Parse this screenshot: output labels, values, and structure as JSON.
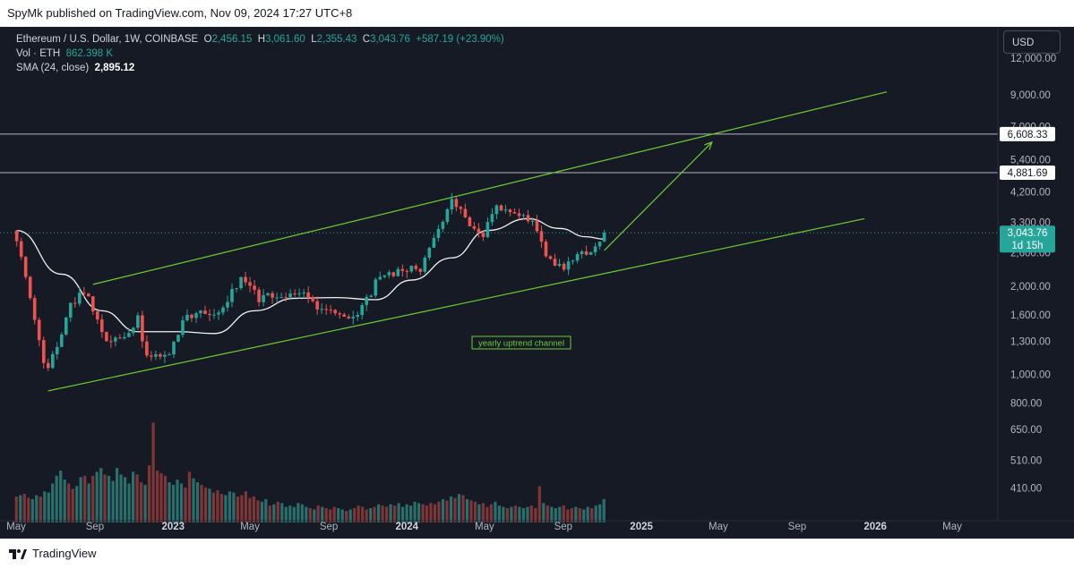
{
  "header": {
    "title": "SpyMk published on TradingView.com, Nov 09, 2024 17:27 UTC+8"
  },
  "legend": {
    "symbol": "Ethereum / U.S. Dollar, 1W, COINBASE",
    "o_label": "O",
    "o": "2,456.15",
    "h_label": "H",
    "h": "3,061.60",
    "l_label": "L",
    "l": "2,355.43",
    "c_label": "C",
    "c": "3,043.76",
    "change": "+587.19 (+23.90%)",
    "vol_label": "Vol · ETH",
    "vol": "862.398 K",
    "sma_label": "SMA (24, close)",
    "sma": "2,895.12"
  },
  "currency": "USD",
  "footer": {
    "brand": "TradingView"
  },
  "colors": {
    "up": "#26a69a",
    "down": "#ef5350",
    "channel": "#6ccf30",
    "sma": "#f2f2f2",
    "background": "#161a25"
  },
  "chart_data": {
    "type": "candlestick",
    "title": "Ethereum / U.S. Dollar, 1W, COINBASE",
    "scale": "log",
    "ylim": [
      330,
      13000
    ],
    "y_ticks": [
      {
        "value": 12000,
        "label": "12,000.00"
      },
      {
        "value": 9000,
        "label": "9,000.00"
      },
      {
        "value": 7000,
        "label": "7,000.00"
      },
      {
        "value": 5400,
        "label": "5,400.00"
      },
      {
        "value": 4200,
        "label": "4,200.00"
      },
      {
        "value": 3300,
        "label": "3,300.00"
      },
      {
        "value": 2600,
        "label": "2,600.00"
      },
      {
        "value": 2000,
        "label": "2,000.00"
      },
      {
        "value": 1600,
        "label": "1,600.00"
      },
      {
        "value": 1300,
        "label": "1,300.00"
      },
      {
        "value": 1000,
        "label": "1,000.00"
      },
      {
        "value": 800,
        "label": "800.00"
      },
      {
        "value": 650,
        "label": "650.00"
      },
      {
        "value": 510,
        "label": "510.00"
      },
      {
        "value": 410,
        "label": "410.00"
      }
    ],
    "x_ticks": [
      {
        "date": "2022-05",
        "label": "May",
        "bold": false
      },
      {
        "date": "2022-09",
        "label": "Sep",
        "bold": false
      },
      {
        "date": "2023-01",
        "label": "2023",
        "bold": true
      },
      {
        "date": "2023-05",
        "label": "May",
        "bold": false
      },
      {
        "date": "2023-09",
        "label": "Sep",
        "bold": false
      },
      {
        "date": "2024-01",
        "label": "2024",
        "bold": true
      },
      {
        "date": "2024-05",
        "label": "May",
        "bold": false
      },
      {
        "date": "2024-09",
        "label": "Sep",
        "bold": false
      },
      {
        "date": "2025-01",
        "label": "2025",
        "bold": true
      },
      {
        "date": "2025-05",
        "label": "May",
        "bold": false
      },
      {
        "date": "2025-09",
        "label": "Sep",
        "bold": false
      },
      {
        "date": "2026-01",
        "label": "2026",
        "bold": true
      },
      {
        "date": "2026-05",
        "label": "May",
        "bold": false
      }
    ],
    "keypoints": [
      {
        "date": "2022-05-02",
        "price": 2950
      },
      {
        "date": "2022-06-13",
        "price": 1100
      },
      {
        "date": "2022-06-20",
        "price": 1050
      },
      {
        "date": "2022-07-25",
        "price": 1700
      },
      {
        "date": "2022-08-15",
        "price": 1950
      },
      {
        "date": "2022-09-19",
        "price": 1300
      },
      {
        "date": "2022-10-24",
        "price": 1350
      },
      {
        "date": "2022-11-07",
        "price": 1550
      },
      {
        "date": "2022-11-21",
        "price": 1150
      },
      {
        "date": "2022-12-26",
        "price": 1200
      },
      {
        "date": "2023-01-23",
        "price": 1600
      },
      {
        "date": "2023-03-13",
        "price": 1650
      },
      {
        "date": "2023-04-17",
        "price": 2100
      },
      {
        "date": "2023-05-15",
        "price": 1820
      },
      {
        "date": "2023-07-17",
        "price": 1900
      },
      {
        "date": "2023-08-21",
        "price": 1680
      },
      {
        "date": "2023-10-16",
        "price": 1580
      },
      {
        "date": "2023-11-13",
        "price": 2050
      },
      {
        "date": "2023-12-25",
        "price": 2300
      },
      {
        "date": "2024-01-22",
        "price": 2250
      },
      {
        "date": "2024-02-26",
        "price": 3400
      },
      {
        "date": "2024-03-11",
        "price": 3900
      },
      {
        "date": "2024-04-15",
        "price": 3100
      },
      {
        "date": "2024-04-29",
        "price": 2950
      },
      {
        "date": "2024-05-20",
        "price": 3800
      },
      {
        "date": "2024-06-17",
        "price": 3450
      },
      {
        "date": "2024-07-15",
        "price": 3400
      },
      {
        "date": "2024-08-05",
        "price": 2500
      },
      {
        "date": "2024-09-02",
        "price": 2300
      },
      {
        "date": "2024-09-23",
        "price": 2650
      },
      {
        "date": "2024-10-14",
        "price": 2550
      },
      {
        "date": "2024-11-04",
        "price": 3043.76
      }
    ],
    "sma_points": [
      {
        "date": "2022-05-02",
        "price": 3100
      },
      {
        "date": "2022-07-11",
        "price": 2200
      },
      {
        "date": "2022-09-12",
        "price": 1650
      },
      {
        "date": "2022-11-07",
        "price": 1400
      },
      {
        "date": "2023-01-09",
        "price": 1400
      },
      {
        "date": "2023-03-06",
        "price": 1380
      },
      {
        "date": "2023-05-08",
        "price": 1650
      },
      {
        "date": "2023-07-10",
        "price": 1820
      },
      {
        "date": "2023-09-11",
        "price": 1830
      },
      {
        "date": "2023-11-13",
        "price": 1800
      },
      {
        "date": "2024-01-08",
        "price": 2100
      },
      {
        "date": "2024-03-11",
        "price": 2500
      },
      {
        "date": "2024-05-06",
        "price": 3100
      },
      {
        "date": "2024-07-08",
        "price": 3400
      },
      {
        "date": "2024-08-26",
        "price": 3150
      },
      {
        "date": "2024-10-07",
        "price": 2950
      },
      {
        "date": "2024-11-04",
        "price": 2895.12
      }
    ],
    "channel": {
      "lower": [
        {
          "date": "2022-06-20",
          "price": 880
        },
        {
          "date": "2025-12-15",
          "price": 3400
        }
      ],
      "upper": [
        {
          "date": "2022-08-29",
          "price": 2030
        },
        {
          "date": "2026-01-19",
          "price": 9200
        }
      ]
    },
    "projection": [
      {
        "date": "2024-11-04",
        "price": 2650
      },
      {
        "date": "2025-04-21",
        "price": 6200
      }
    ],
    "horizontal_levels": [
      {
        "price": 6608.33,
        "label": "6,608.33"
      },
      {
        "price": 4881.69,
        "label": "4,881.69"
      }
    ],
    "current_price": {
      "price": 3043.76,
      "label": "3,043.76",
      "countdown": "1d 15h"
    },
    "annotation": "yearly uptrend channel",
    "volume": {
      "values": [
        0.2,
        0.21,
        0.22,
        0.19,
        0.18,
        0.21,
        0.2,
        0.24,
        0.23,
        0.3,
        0.36,
        0.4,
        0.33,
        0.3,
        0.26,
        0.28,
        0.35,
        0.36,
        0.3,
        0.36,
        0.39,
        0.42,
        0.37,
        0.36,
        0.32,
        0.42,
        0.37,
        0.35,
        0.3,
        0.39,
        0.37,
        0.31,
        0.29,
        0.44,
        0.77,
        0.4,
        0.38,
        0.36,
        0.31,
        0.29,
        0.33,
        0.3,
        0.27,
        0.39,
        0.34,
        0.31,
        0.29,
        0.27,
        0.26,
        0.23,
        0.25,
        0.22,
        0.21,
        0.24,
        0.23,
        0.2,
        0.21,
        0.24,
        0.19,
        0.2,
        0.17,
        0.16,
        0.18,
        0.13,
        0.14,
        0.16,
        0.15,
        0.12,
        0.13,
        0.12,
        0.15,
        0.14,
        0.12,
        0.11,
        0.1,
        0.13,
        0.12,
        0.11,
        0.1,
        0.12,
        0.11,
        0.1,
        0.09,
        0.1,
        0.11,
        0.13,
        0.12,
        0.1,
        0.11,
        0.12,
        0.14,
        0.13,
        0.12,
        0.14,
        0.13,
        0.15,
        0.12,
        0.14,
        0.13,
        0.16,
        0.15,
        0.14,
        0.13,
        0.15,
        0.14,
        0.16,
        0.18,
        0.17,
        0.2,
        0.19,
        0.22,
        0.21,
        0.18,
        0.17,
        0.16,
        0.14,
        0.15,
        0.12,
        0.14,
        0.16,
        0.13,
        0.12,
        0.11,
        0.12,
        0.13,
        0.12,
        0.11,
        0.12,
        0.13,
        0.11,
        0.28,
        0.15,
        0.13,
        0.12,
        0.11,
        0.12,
        0.13,
        0.1,
        0.11,
        0.12,
        0.11,
        0.1,
        0.12,
        0.11,
        0.13,
        0.14,
        0.18
      ]
    }
  }
}
